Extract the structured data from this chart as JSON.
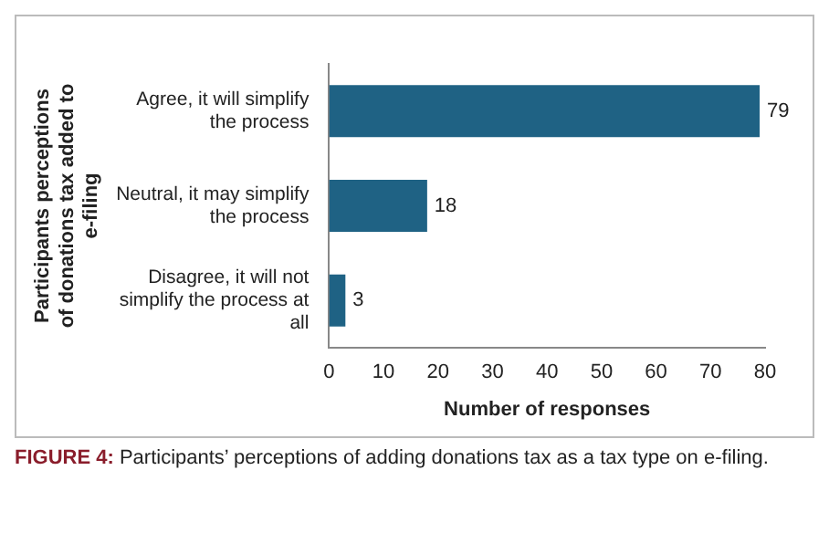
{
  "chart_data": {
    "type": "bar",
    "orientation": "horizontal",
    "categories": [
      "Agree, it will simplify the process",
      "Neutral, it may simplify the process",
      "Disagree, it will not simplify the process at all"
    ],
    "values": [
      79,
      18,
      3
    ],
    "color": "#1f6284",
    "data_labels": true,
    "xlim": [
      0,
      80
    ],
    "xticks": [
      0,
      10,
      20,
      30,
      40,
      50,
      60,
      70,
      80
    ],
    "grid": false,
    "legend": false,
    "xlabel": "Number of responses",
    "ylabel": "Participants perceptions of donations tax added to e-filing",
    "annotations": [
      "FIGURE 4: Participants’ perceptions of adding donations tax as a tax type on e-filing."
    ]
  }
}
